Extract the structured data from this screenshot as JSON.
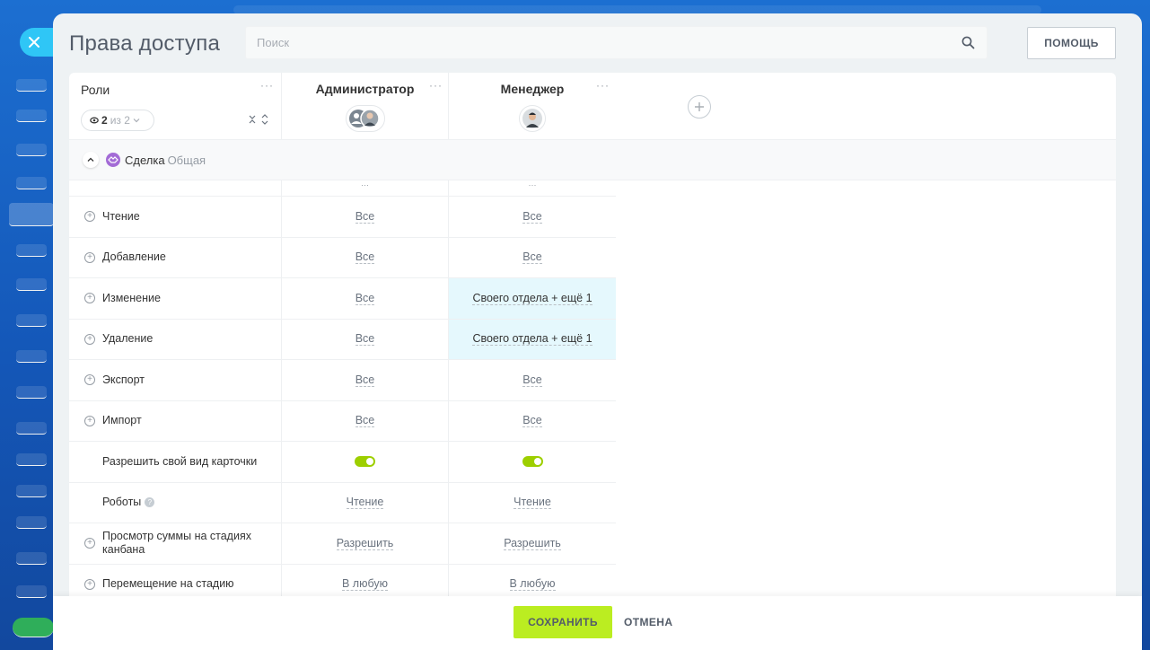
{
  "panel": {
    "title": "Права доступа"
  },
  "search": {
    "placeholder": "Поиск"
  },
  "help_button": "ПОМОЩЬ",
  "roles_column": {
    "title": "Роли",
    "filter_count": "2",
    "filter_of": "из 2"
  },
  "roles": [
    {
      "name": "Администратор",
      "avatar": "group-avatar"
    },
    {
      "name": "Менеджер",
      "avatar": "user-avatar"
    }
  ],
  "section": {
    "title": "Сделка",
    "subtitle": "Общая"
  },
  "permissions": [
    {
      "label": "Чтение",
      "expandable": true,
      "admin": "Все",
      "manager": "Все"
    },
    {
      "label": "Добавление",
      "expandable": true,
      "admin": "Все",
      "manager": "Все"
    },
    {
      "label": "Изменение",
      "expandable": true,
      "admin": "Все",
      "manager": "Своего отдела + ещё 1",
      "manager_highlight": true
    },
    {
      "label": "Удаление",
      "expandable": true,
      "admin": "Все",
      "manager": "Своего отдела + ещё 1",
      "manager_highlight": true
    },
    {
      "label": "Экспорт",
      "expandable": true,
      "admin": "Все",
      "manager": "Все"
    },
    {
      "label": "Импорт",
      "expandable": true,
      "admin": "Все",
      "manager": "Все"
    },
    {
      "label": "Разрешить свой вид карточки",
      "expandable": false,
      "admin_toggle": true,
      "manager_toggle": true
    },
    {
      "label": "Роботы",
      "expandable": false,
      "help": true,
      "admin": "Чтение",
      "manager": "Чтение"
    },
    {
      "label": "Просмотр суммы на стадиях канбана",
      "expandable": true,
      "admin": "Разрешить",
      "manager": "Разрешить"
    },
    {
      "label": "Перемещение на стадию",
      "expandable": true,
      "admin": "В любую",
      "manager": "В любую"
    }
  ],
  "footer": {
    "save": "СОХРАНИТЬ",
    "cancel": "ОТМЕНА"
  },
  "colors": {
    "accent_green": "#bbed21",
    "toggle_on": "#9dcf00",
    "highlight": "#e5f8fd",
    "close_button": "#2fc6f6"
  }
}
